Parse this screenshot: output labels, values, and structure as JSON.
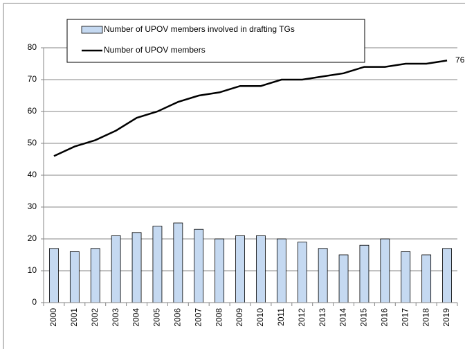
{
  "chart_data": {
    "type": "bar",
    "categories": [
      "2000",
      "2001",
      "2002",
      "2003",
      "2004",
      "2005",
      "2006",
      "2007",
      "2008",
      "2009",
      "2010",
      "2011",
      "2012",
      "2013",
      "2014",
      "2015",
      "2016",
      "2017",
      "2018",
      "2019"
    ],
    "series": [
      {
        "name": "Number of UPOV members involved in drafting TGs",
        "type": "bar",
        "color": "#c5d9f1",
        "values": [
          17,
          16,
          17,
          21,
          22,
          24,
          25,
          23,
          20,
          21,
          21,
          20,
          19,
          17,
          15,
          18,
          20,
          16,
          15,
          17
        ]
      },
      {
        "name": "Number of UPOV members",
        "type": "line",
        "color": "#000000",
        "values": [
          46,
          49,
          51,
          54,
          58,
          60,
          63,
          65,
          66,
          68,
          68,
          70,
          70,
          71,
          72,
          74,
          74,
          75,
          75,
          76
        ]
      }
    ],
    "ylim": [
      0,
      80
    ],
    "yticks": [
      0,
      10,
      20,
      30,
      40,
      50,
      60,
      70,
      80
    ],
    "grid": true,
    "legend": "top"
  }
}
